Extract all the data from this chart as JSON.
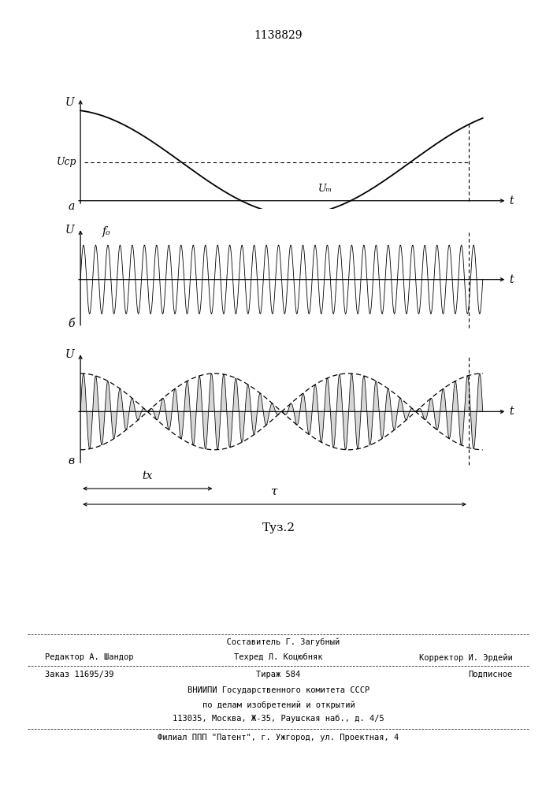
{
  "title": "1138829",
  "title_fontsize": 10,
  "fig_width": 7.07,
  "fig_height": 10.0,
  "bg_color": "#ffffff",
  "panel_a_label": "a",
  "panel_b_label": "б",
  "panel_v_label": "в",
  "U_label": "U",
  "t_label": "t",
  "f0_label": "f₀",
  "Ucp_label": "Uср",
  "Um_label": "Uₘ",
  "tx_label": "tх",
  "tau_label": "τ",
  "fig_label": "Τуз.2",
  "caption_line1": "  Составитель Г. Загубный",
  "caption_editor": "Редактор А. Шандор",
  "caption_techred": "Техред Л. Коцюбняк",
  "caption_corrector": "Корректор И. Эрдейи",
  "caption_order": "Заказ 11695/39",
  "caption_tirazh": "Тираж 584",
  "caption_podpisnoe": "Подписное",
  "caption_vnipi": "ВНИИПИ Государственного комитета СССР",
  "caption_po_delam": "по делам изобретений и открытий",
  "caption_address": "113035, Москва, Ж-35, Раушская наб., д. 4/5",
  "caption_filial": "Филиал ППП \"Патент\", г. Ужгород, ул. Проектная, 4"
}
